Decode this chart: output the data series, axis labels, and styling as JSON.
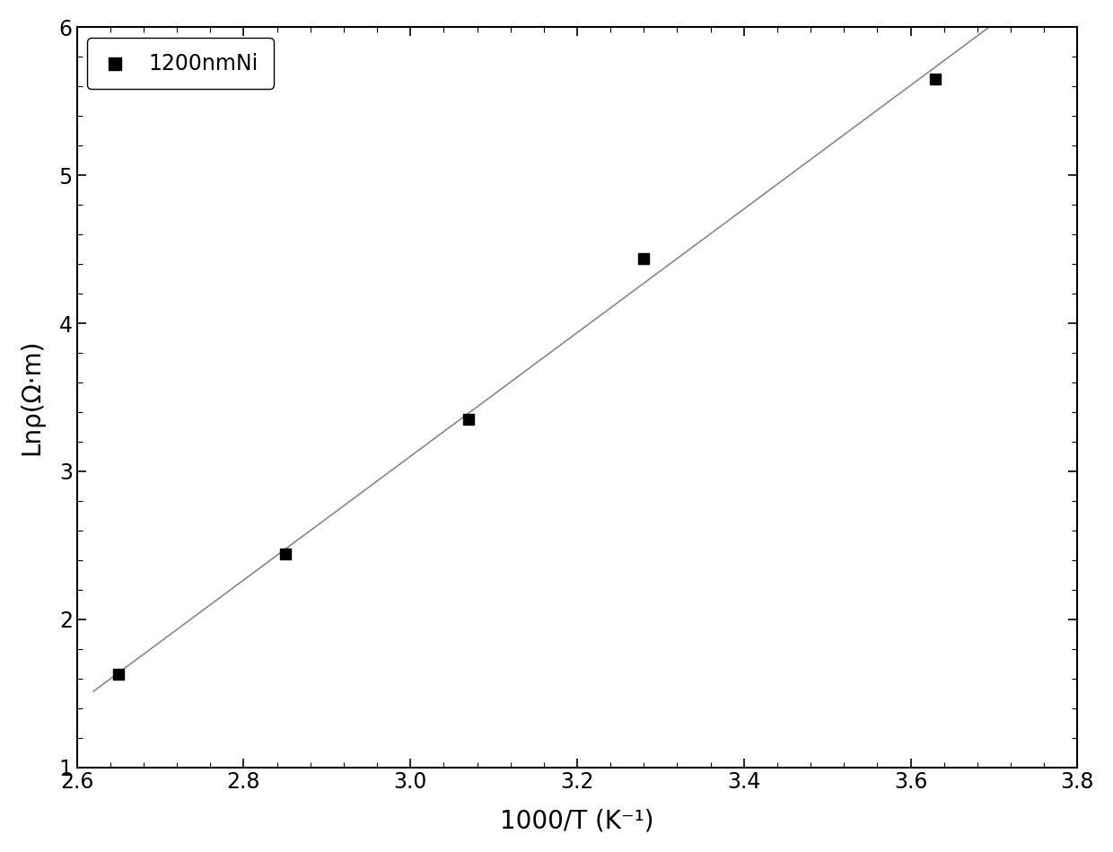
{
  "x_data": [
    2.65,
    2.85,
    3.07,
    3.28,
    3.63
  ],
  "y_data": [
    1.63,
    2.44,
    3.35,
    4.44,
    5.65
  ],
  "xlabel": "1000/T (K⁻¹)",
  "ylabel": "Lnρ(Ω·m)",
  "xlim": [
    2.6,
    3.8
  ],
  "ylim": [
    1.0,
    6.0
  ],
  "xticks": [
    2.6,
    2.8,
    3.0,
    3.2,
    3.4,
    3.6,
    3.8
  ],
  "yticks": [
    1,
    2,
    3,
    4,
    5,
    6
  ],
  "legend_label": "1200nmNi",
  "marker_color": "#000000",
  "line_color": "#888888",
  "background_color": "#ffffff",
  "marker_size": 8,
  "line_width": 1.2,
  "figsize": [
    12.4,
    9.49
  ],
  "dpi": 100
}
